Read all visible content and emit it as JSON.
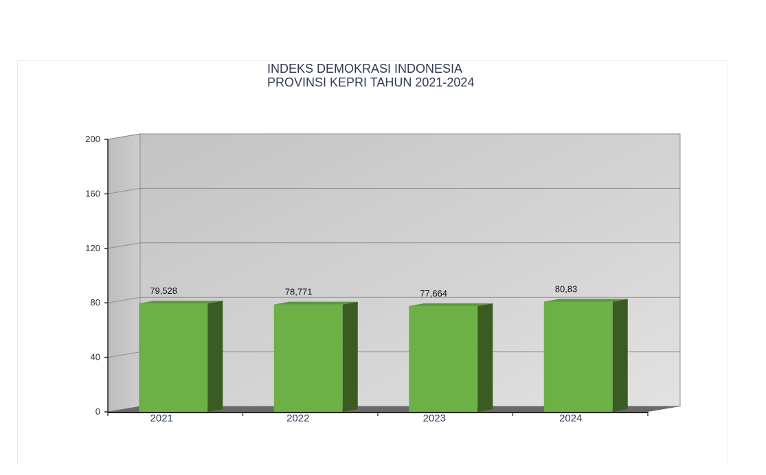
{
  "chart_data": {
    "type": "bar",
    "title": "INDEKS DEMOKRASI INDONESIA",
    "subtitle": "PROVINSI KEPRI TAHUN 2021-2024",
    "categories": [
      "2021",
      "2022",
      "2023",
      "2024"
    ],
    "values": [
      79.528,
      78.771,
      77.664,
      80.83
    ],
    "value_labels": [
      "79,528",
      "78,771",
      "77,664",
      "80,83"
    ],
    "ylim": [
      0,
      200
    ],
    "yticks": [
      0,
      40,
      80,
      120,
      160,
      200
    ],
    "grid": true,
    "legend": "none",
    "three_d": true,
    "colors": {
      "bar_front": "#6db046",
      "bar_side": "#3a5b22",
      "bar_top": "#5a9838",
      "back_wall": "#cdcdcd",
      "side_wall": "#c6c6c6",
      "floor": "#6a6a6a",
      "grid": "#8f8f8f"
    }
  }
}
